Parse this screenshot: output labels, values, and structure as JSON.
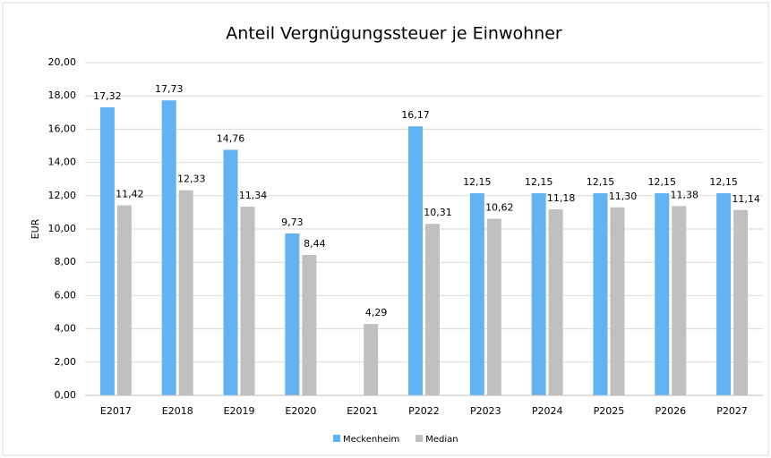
{
  "chart_data": {
    "type": "bar",
    "title": "Anteil Vergnügungssteuer je Einwohner",
    "y_label": "EUR",
    "categories": [
      "E2017",
      "E2018",
      "E2019",
      "E2020",
      "E2021",
      "P2022",
      "P2023",
      "P2024",
      "P2025",
      "P2026",
      "P2027"
    ],
    "series": [
      {
        "name": "Meckenheim",
        "color": "#63b3f3",
        "values": [
          17.32,
          17.73,
          14.76,
          9.73,
          null,
          16.17,
          12.15,
          12.15,
          12.15,
          12.15,
          12.15
        ],
        "value_labels": [
          "17,32",
          "17,73",
          "14,76",
          "9,73",
          null,
          "16,17",
          "12,15",
          "12,15",
          "12,15",
          "12,15",
          "12,15"
        ]
      },
      {
        "name": "Median",
        "color": "#c0c0c0",
        "values": [
          11.42,
          12.33,
          11.34,
          8.44,
          4.29,
          10.31,
          10.62,
          11.18,
          11.3,
          11.38,
          11.14
        ],
        "value_labels": [
          "11,42",
          "12,33",
          "11,34",
          "8,44",
          "4,29",
          "10,31",
          "10,62",
          "11,18",
          "11,30",
          "11,38",
          "11,14"
        ]
      }
    ],
    "ylim": [
      0,
      20
    ],
    "yticks": [
      {
        "value": 0,
        "label": "0,00"
      },
      {
        "value": 2,
        "label": "2,00"
      },
      {
        "value": 4,
        "label": "4,00"
      },
      {
        "value": 6,
        "label": "6,00"
      },
      {
        "value": 8,
        "label": "8,00"
      },
      {
        "value": 10,
        "label": "10,00"
      },
      {
        "value": 12,
        "label": "12,00"
      },
      {
        "value": 14,
        "label": "14,00"
      },
      {
        "value": 16,
        "label": "16,00"
      },
      {
        "value": 18,
        "label": "18,00"
      },
      {
        "value": 20,
        "label": "20,00"
      }
    ],
    "grid": true,
    "legend": "bottom"
  }
}
